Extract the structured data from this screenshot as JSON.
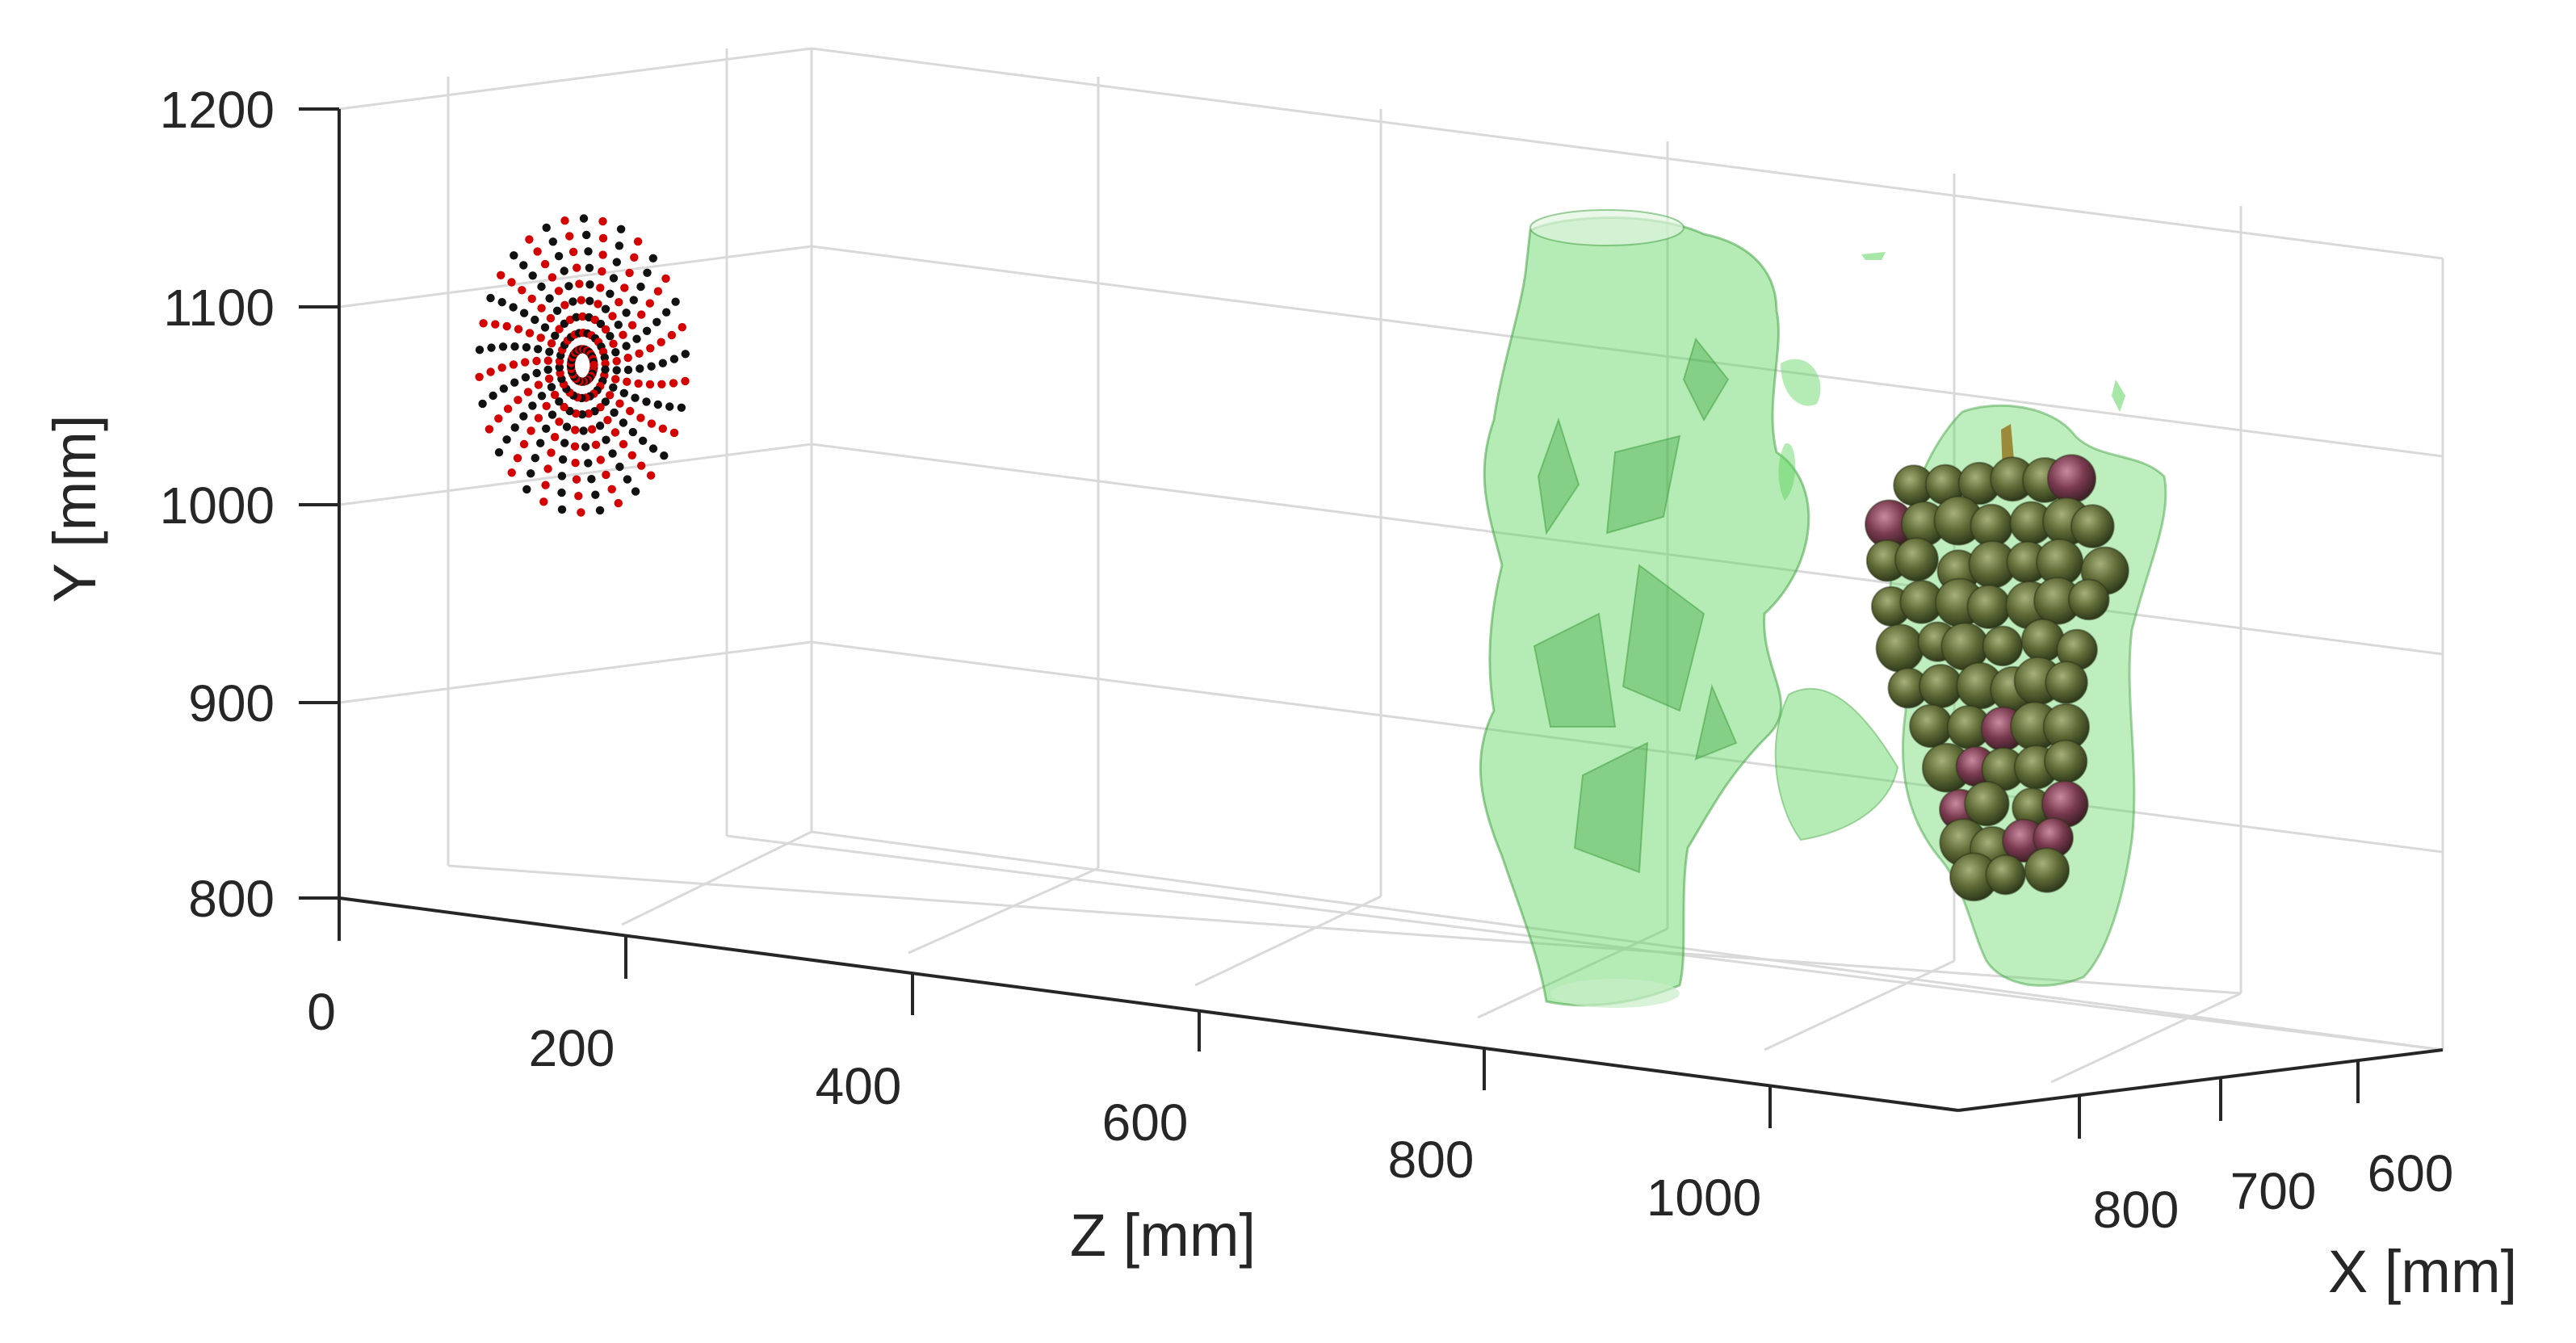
{
  "chart_data": {
    "type": "scatter",
    "projection": "3d",
    "grid": true,
    "xlabel": "X [mm]",
    "ylabel": "Y [mm]",
    "zlabel": "Z [mm]",
    "ylim": [
      800,
      1200
    ],
    "zlim": [
      0,
      1100
    ],
    "xlim": [
      550,
      850
    ],
    "y_ticks": [
      "800",
      "900",
      "1000",
      "1100",
      "1200"
    ],
    "z_ticks": [
      "0",
      "200",
      "400",
      "600",
      "800",
      "1000"
    ],
    "x_ticks": [
      "800",
      "700",
      "600"
    ],
    "colors": {
      "point_a": "#d40000",
      "point_b": "#111111",
      "surface_fill": "#5cd25c",
      "surface_edge": "#3a9e3a",
      "grape_dark": "#4b5a2c",
      "grape_light": "#8c9a5a",
      "grape_purple": "#8a3550"
    },
    "series": [
      {
        "marker": "point-cloud",
        "description_type": "spiral-disk",
        "center_y": 1070,
        "center_z": 170,
        "radius": 60,
        "spiral_arms": 34,
        "points_per_arm": 9
      },
      {
        "marker": "isosurface",
        "object": "trunk",
        "y_range": [
          780,
          1150
        ],
        "z_range": [
          800,
          960
        ]
      },
      {
        "marker": "isosurface",
        "object": "cluster",
        "y_range": [
          800,
          1040
        ],
        "z_range": [
          1080,
          1250
        ]
      }
    ]
  }
}
